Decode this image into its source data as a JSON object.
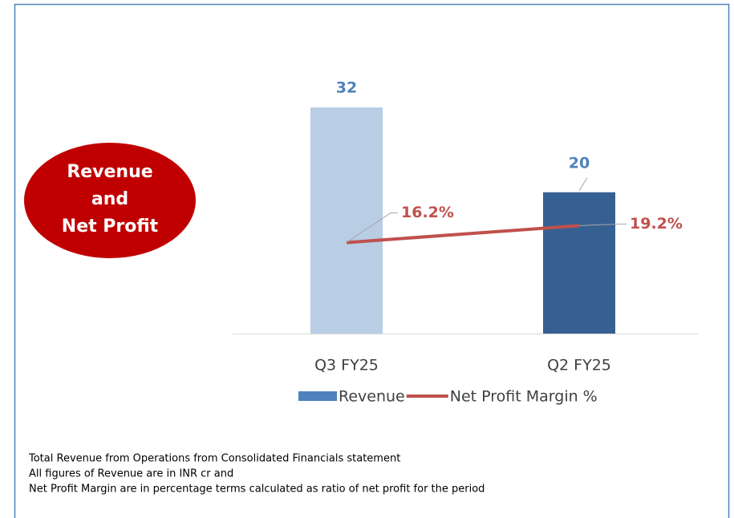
{
  "chart_data": {
    "type": "bar_line",
    "badge": [
      "Revenue",
      "and",
      "Net Profit"
    ],
    "categories": [
      "Q3 FY25",
      "Q2 FY25"
    ],
    "series": [
      {
        "name": "Revenue",
        "type": "bar",
        "color": "#4f81bd",
        "point_colors": [
          "#b9cde5",
          "#376092"
        ],
        "values": [
          32,
          20
        ]
      },
      {
        "name": "Net Profit Margin %",
        "type": "line",
        "axis": "y2",
        "color": "#c0504d",
        "values": [
          16.2,
          19.2
        ],
        "value_labels": [
          "16.2%",
          "19.2%"
        ]
      }
    ],
    "ylim": [
      0,
      35
    ],
    "y2lim": [
      0,
      44
    ],
    "legend": "bottom",
    "footnotes": [
      "Total Revenue from Operations from Consolidated Financials statement",
      "All figures of Revenue are in INR cr and",
      "Net Profit Margin are in percentage terms calculated as ratio of net profit for the period"
    ]
  }
}
